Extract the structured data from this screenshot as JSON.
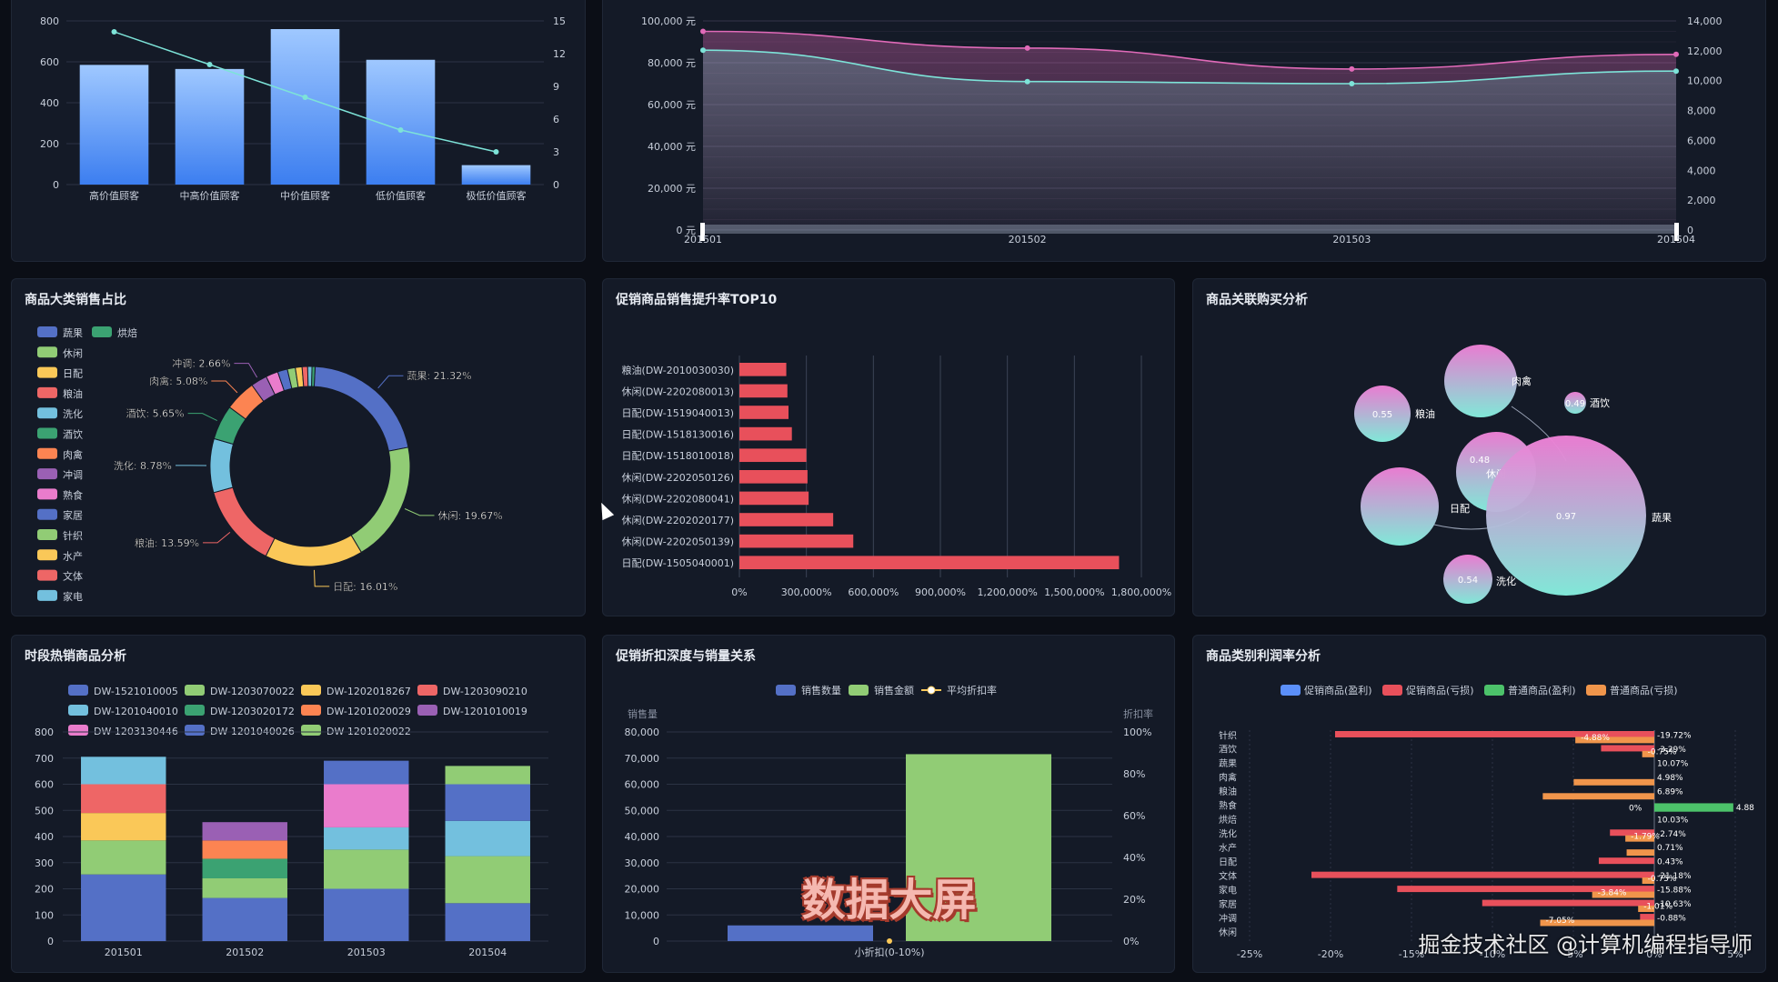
{
  "colors": {
    "blue": "#5470c6",
    "green": "#91cc75",
    "yellow": "#fac858",
    "red": "#ee6666",
    "cyan": "#73c0de",
    "teal": "#3ba272",
    "orange": "#fc8452",
    "purple": "#9a60b4",
    "pink": "#ea7ccc",
    "bar_red": "#e8505b",
    "line_cyan": "#7de3d8",
    "line_pink": "#e06ab8"
  },
  "panels": {
    "customer_value": {
      "title": ""
    },
    "monthly_trend": {
      "title": ""
    },
    "category_share": {
      "title": "商品大类销售占比"
    },
    "promo_top10": {
      "title": "促销商品销售提升率TOP10"
    },
    "assoc_buy": {
      "title": "商品关联购买分析"
    },
    "hot_by_period": {
      "title": "时段热销商品分析"
    },
    "discount_depth": {
      "title": "促销折扣深度与销量关系"
    },
    "profit_rate": {
      "title": "商品类别利润率分析"
    }
  },
  "overlay": {
    "title": "数据大屏",
    "watermark": "掘金技术社区 @计算机编程指导师"
  },
  "chart_data": [
    {
      "id": "customer_value",
      "type": "bar",
      "categories": [
        "高价值顾客",
        "中高价值顾客",
        "中价值顾客",
        "低价值顾客",
        "极低价值顾客"
      ],
      "series": [
        {
          "values": [
            585,
            565,
            760,
            610,
            95
          ]
        },
        {
          "type": "line",
          "values": [
            14,
            11,
            8,
            5,
            3
          ]
        }
      ],
      "ylim": [
        0,
        800
      ],
      "yticks": [
        "0",
        "200",
        "400",
        "600",
        "800"
      ],
      "y2lim": [
        0,
        15
      ],
      "y2ticks": [
        "0",
        "3",
        "6",
        "9",
        "12",
        "15"
      ]
    },
    {
      "id": "monthly_trend",
      "type": "line",
      "x": [
        "201501",
        "201502",
        "201503",
        "201504"
      ],
      "series": [
        {
          "values": [
            95000,
            87000,
            77000,
            84000
          ]
        },
        {
          "values": [
            86000,
            71000,
            70000,
            76000
          ]
        }
      ],
      "ylim": [
        0,
        100000
      ],
      "yticks": [
        "0 元",
        "20,000 元",
        "40,000 元",
        "60,000 元",
        "80,000 元",
        "100,000 元"
      ],
      "y2ticks": [
        "0",
        "2,000",
        "4,000",
        "6,000",
        "8,000",
        "10,000",
        "12,000",
        "14,000"
      ]
    },
    {
      "id": "category_share",
      "type": "pie",
      "legend": [
        "蔬果",
        "烘焙",
        "休闲",
        "日配",
        "粮油",
        "洗化",
        "酒饮",
        "肉禽",
        "冲调",
        "熟食",
        "家居",
        "针织",
        "水产",
        "文体",
        "家电"
      ],
      "slices": [
        {
          "name": "蔬果",
          "value": 21.32,
          "label": "蔬果: 21.32%"
        },
        {
          "name": "休闲",
          "value": 19.67,
          "label": "休闲: 19.67%"
        },
        {
          "name": "日配",
          "value": 16.01,
          "label": "日配: 16.01%"
        },
        {
          "name": "粮油",
          "value": 13.59,
          "label": "粮油: 13.59%"
        },
        {
          "name": "洗化",
          "value": 8.78,
          "label": "洗化: 8.78%"
        },
        {
          "name": "酒饮",
          "value": 5.65,
          "label": "酒饮: 5.65%"
        },
        {
          "name": "肉禽",
          "value": 5.08,
          "label": "肉禽: 5.08%"
        },
        {
          "name": "冲调",
          "value": 2.66,
          "label": "冲调: 2.66%"
        },
        {
          "name": "熟食",
          "value": 2.0
        },
        {
          "name": "家居",
          "value": 1.6
        },
        {
          "name": "针织",
          "value": 1.3
        },
        {
          "name": "水产",
          "value": 1.1
        },
        {
          "name": "文体",
          "value": 0.9
        },
        {
          "name": "家电",
          "value": 0.7
        },
        {
          "name": "烘焙",
          "value": 0.5
        }
      ]
    },
    {
      "id": "promo_top10",
      "type": "bar",
      "orientation": "horizontal",
      "categories": [
        "粮油(DW-2010030030)",
        "休闲(DW-2202080013)",
        "日配(DW-1519040013)",
        "日配(DW-1518130016)",
        "日配(DW-1518010018)",
        "休闲(DW-2202050126)",
        "休闲(DW-2202080041)",
        "休闲(DW-2202020177)",
        "休闲(DW-2202050139)",
        "日配(DW-1505040001)"
      ],
      "values": [
        210000,
        215000,
        220000,
        235000,
        300000,
        305000,
        310000,
        420000,
        510000,
        1700000
      ],
      "xlim": [
        0,
        1800000
      ],
      "xticks": [
        "0%",
        "300,000%",
        "600,000%",
        "900,000%",
        "1,200,000%",
        "1,500,000%",
        "1,800,000%"
      ]
    },
    {
      "id": "assoc_buy",
      "type": "scatter",
      "nodes": [
        {
          "name": "肉禽",
          "size": 40,
          "label": ""
        },
        {
          "name": "酒饮",
          "size": 12,
          "label": "0.49"
        },
        {
          "name": "粮油",
          "size": 31,
          "label": "0.55"
        },
        {
          "name": "休闲",
          "size": 44,
          "label": "0.48"
        },
        {
          "name": "日配",
          "size": 43,
          "label": ""
        },
        {
          "name": "蔬果",
          "size": 88,
          "label": "0.97"
        },
        {
          "name": "洗化",
          "size": 27,
          "label": "0.54"
        }
      ]
    },
    {
      "id": "hot_by_period",
      "type": "bar",
      "stacked": true,
      "categories": [
        "201501",
        "201502",
        "201503",
        "201504"
      ],
      "series": [
        {
          "name": "DW-1521010005",
          "values": [
            255,
            165,
            200,
            145
          ]
        },
        {
          "name": "DW-1203070022",
          "values": [
            130,
            75,
            150,
            180
          ]
        },
        {
          "name": "DW-1202018267",
          "values": [
            105,
            0,
            0,
            0
          ]
        },
        {
          "name": "DW-1203090210",
          "values": [
            110,
            0,
            0,
            0
          ]
        },
        {
          "name": "DW-1201040010",
          "values": [
            105,
            0,
            85,
            135
          ]
        },
        {
          "name": "DW-1203020172",
          "values": [
            0,
            75,
            0,
            0
          ]
        },
        {
          "name": "DW-1201020029",
          "values": [
            0,
            70,
            0,
            0
          ]
        },
        {
          "name": "DW-1201010019",
          "values": [
            0,
            70,
            0,
            0
          ]
        },
        {
          "name": "DW-1203130446",
          "values": [
            0,
            0,
            165,
            0
          ]
        },
        {
          "name": "DW-1201040026",
          "values": [
            0,
            0,
            90,
            140
          ]
        },
        {
          "name": "DW-1201020022",
          "values": [
            0,
            0,
            0,
            70
          ]
        }
      ],
      "ylim": [
        0,
        800
      ],
      "yticks": [
        "0",
        "100",
        "200",
        "300",
        "400",
        "500",
        "600",
        "700",
        "800"
      ]
    },
    {
      "id": "discount_depth",
      "type": "bar",
      "categories": [
        "小折扣(0-10%)"
      ],
      "series": [
        {
          "name": "销售数量",
          "values": [
            6000
          ]
        },
        {
          "name": "销售金额",
          "values": [
            71500
          ]
        },
        {
          "name": "平均折扣率",
          "type": "line",
          "values": [
            0
          ]
        }
      ],
      "ylabel": "销售量",
      "y2label": "折扣率",
      "ylim": [
        0,
        80000
      ],
      "yticks": [
        "0",
        "10,000",
        "20,000",
        "30,000",
        "40,000",
        "50,000",
        "60,000",
        "70,000",
        "80,000"
      ],
      "y2ticks": [
        "0%",
        "20%",
        "40%",
        "60%",
        "80%",
        "100%"
      ]
    },
    {
      "id": "profit_rate",
      "type": "bar",
      "orientation": "horizontal",
      "categories": [
        "针织",
        "酒饮",
        "蔬果",
        "肉禽",
        "粮油",
        "熟食",
        "烘焙",
        "洗化",
        "水产",
        "日配",
        "文体",
        "家电",
        "家居",
        "冲调",
        "休闲"
      ],
      "series": [
        {
          "name": "促销商品(盈利)",
          "values": [
            0,
            0,
            0,
            0,
            0,
            0,
            0,
            0,
            0,
            0,
            0,
            0,
            0,
            0,
            0
          ]
        },
        {
          "name": "促销商品(亏损)",
          "values": [
            -19.72,
            -3.29,
            0,
            0,
            0,
            0,
            0,
            -2.74,
            0,
            -3.43,
            -21.18,
            -15.88,
            -10.63,
            -0.88,
            0
          ]
        },
        {
          "name": "普通商品(盈利)",
          "values": [
            0,
            0,
            0,
            0,
            0,
            4.88,
            0,
            0,
            0,
            0,
            0,
            0,
            0,
            0,
            0
          ]
        },
        {
          "name": "普通商品(亏损)",
          "values": [
            -4.88,
            -0.75,
            0,
            -4.98,
            -6.89,
            0,
            0,
            -1.79,
            -1.71,
            0,
            -0.75,
            -3.84,
            -1.0,
            -7.05,
            0
          ]
        }
      ],
      "labels": {
        "left": [
          "-4.88%",
          "-0.75%",
          "",
          "",
          "",
          "0%",
          "",
          "-1.79%",
          "",
          "",
          "-0.75%",
          "-3.84%",
          "-1.01%",
          "-7.05%",
          ""
        ],
        "right": [
          "-19.72%",
          "-3.29%",
          "10.07%",
          "4.98%",
          "6.89%",
          "",
          "10.03%",
          "-2.74%",
          "0.71%",
          "0.43%",
          "-21.18%",
          "-15.88%",
          "-10.63%",
          "-0.88%",
          ""
        ],
        "positive": [
          "",
          "",
          "",
          "",
          "",
          "4.88",
          "",
          "",
          "",
          "",
          "",
          "",
          "",
          "",
          ""
        ]
      },
      "legend": [
        "促销商品(盈利)",
        "促销商品(亏损)",
        "普通商品(盈利)",
        "普通商品(亏损)"
      ],
      "xticks": [
        "-25%",
        "-20%",
        "-15%",
        "-10%",
        "-5%",
        "0%",
        "5%"
      ],
      "xlim": [
        -25,
        5
      ]
    }
  ]
}
